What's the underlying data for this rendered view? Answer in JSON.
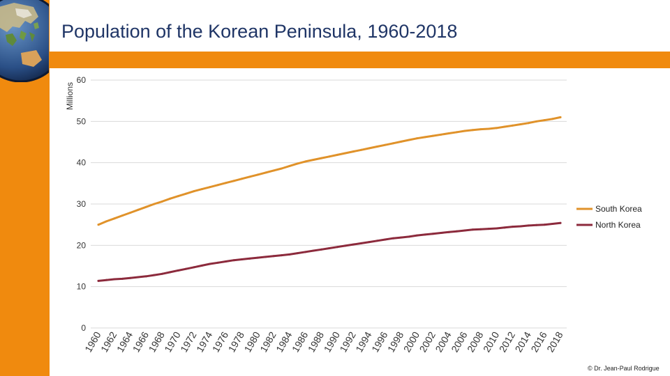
{
  "title": "Population of the Korean Peninsula, 1960-2018",
  "credit": "© Dr. Jean-Paul Rodrigue",
  "colors": {
    "accent": "#F08A0E",
    "title": "#1f3566",
    "south": "#E0922A",
    "north": "#8C2A3C"
  },
  "chart_data": {
    "type": "line",
    "title": "Population of the Korean Peninsula, 1960-2018",
    "ylabel": "Millions",
    "xlabel": "",
    "ylim": [
      0,
      60
    ],
    "yticks": [
      0,
      10,
      20,
      30,
      40,
      50,
      60
    ],
    "grid": true,
    "legend": "right",
    "x": [
      1960,
      1961,
      1962,
      1963,
      1964,
      1965,
      1966,
      1967,
      1968,
      1969,
      1970,
      1971,
      1972,
      1973,
      1974,
      1975,
      1976,
      1977,
      1978,
      1979,
      1980,
      1981,
      1982,
      1983,
      1984,
      1985,
      1986,
      1987,
      1988,
      1989,
      1990,
      1991,
      1992,
      1993,
      1994,
      1995,
      1996,
      1997,
      1998,
      1999,
      2000,
      2001,
      2002,
      2003,
      2004,
      2005,
      2006,
      2007,
      2008,
      2009,
      2010,
      2011,
      2012,
      2013,
      2014,
      2015,
      2016,
      2017,
      2018
    ],
    "xtick_labels": [
      "1960",
      "1962",
      "1964",
      "1966",
      "1968",
      "1970",
      "1972",
      "1974",
      "1976",
      "1978",
      "1980",
      "1982",
      "1984",
      "1986",
      "1988",
      "1990",
      "1992",
      "1994",
      "1996",
      "1998",
      "2000",
      "2002",
      "2004",
      "2006",
      "2008",
      "2010",
      "2012",
      "2014",
      "2016",
      "2018"
    ],
    "series": [
      {
        "name": "South Korea",
        "values": [
          25.0,
          25.8,
          26.5,
          27.2,
          27.9,
          28.6,
          29.3,
          30.0,
          30.6,
          31.3,
          31.9,
          32.5,
          33.1,
          33.6,
          34.1,
          34.6,
          35.1,
          35.6,
          36.1,
          36.6,
          37.1,
          37.6,
          38.1,
          38.6,
          39.2,
          39.8,
          40.3,
          40.7,
          41.1,
          41.5,
          41.9,
          42.3,
          42.7,
          43.1,
          43.5,
          43.9,
          44.3,
          44.7,
          45.1,
          45.5,
          45.9,
          46.2,
          46.5,
          46.8,
          47.1,
          47.4,
          47.7,
          47.9,
          48.1,
          48.2,
          48.4,
          48.7,
          49.0,
          49.3,
          49.6,
          50.0,
          50.3,
          50.6,
          51.0
        ]
      },
      {
        "name": "North Korea",
        "values": [
          11.4,
          11.6,
          11.8,
          11.9,
          12.1,
          12.3,
          12.5,
          12.8,
          13.1,
          13.5,
          13.9,
          14.3,
          14.7,
          15.1,
          15.5,
          15.8,
          16.1,
          16.4,
          16.6,
          16.8,
          17.0,
          17.2,
          17.4,
          17.6,
          17.8,
          18.1,
          18.4,
          18.7,
          19.0,
          19.3,
          19.6,
          19.9,
          20.2,
          20.5,
          20.8,
          21.1,
          21.4,
          21.7,
          21.9,
          22.1,
          22.4,
          22.6,
          22.8,
          23.0,
          23.2,
          23.4,
          23.6,
          23.8,
          23.9,
          24.0,
          24.1,
          24.3,
          24.5,
          24.6,
          24.8,
          24.9,
          25.0,
          25.2,
          25.4
        ]
      }
    ]
  }
}
